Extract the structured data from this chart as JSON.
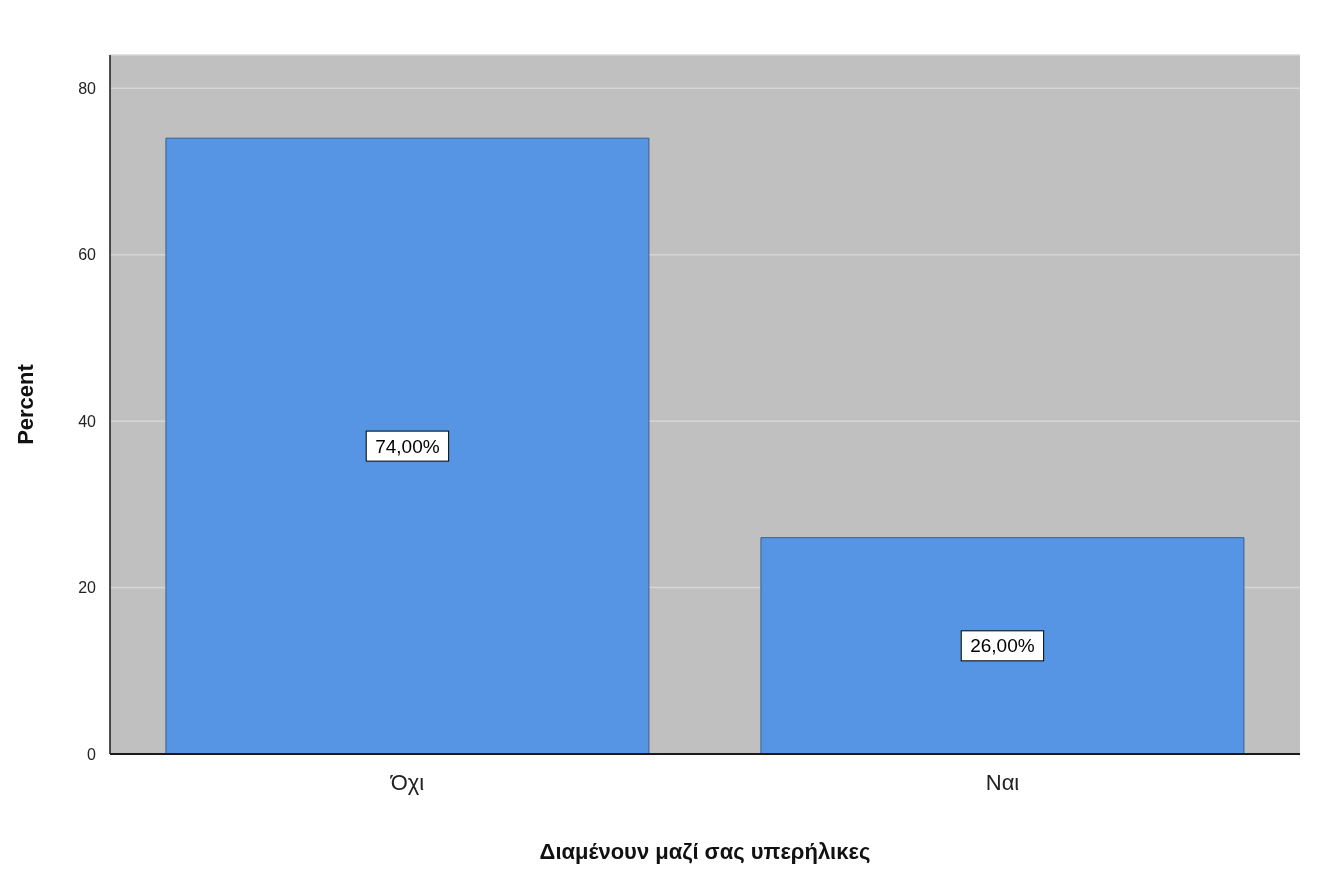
{
  "chart_data": {
    "type": "bar",
    "xlabel": "Διαμένουν μαζί σας υπερήλικες",
    "ylabel": "Percent",
    "categories": [
      "Όχι",
      "Ναι"
    ],
    "values": [
      74,
      26
    ],
    "color": "#5595e3",
    "value_labels": [
      "74,00%",
      "26,00%"
    ],
    "ylim": [
      0,
      84
    ],
    "yticks": [
      0,
      20,
      40,
      60,
      80
    ],
    "grid": "y"
  }
}
